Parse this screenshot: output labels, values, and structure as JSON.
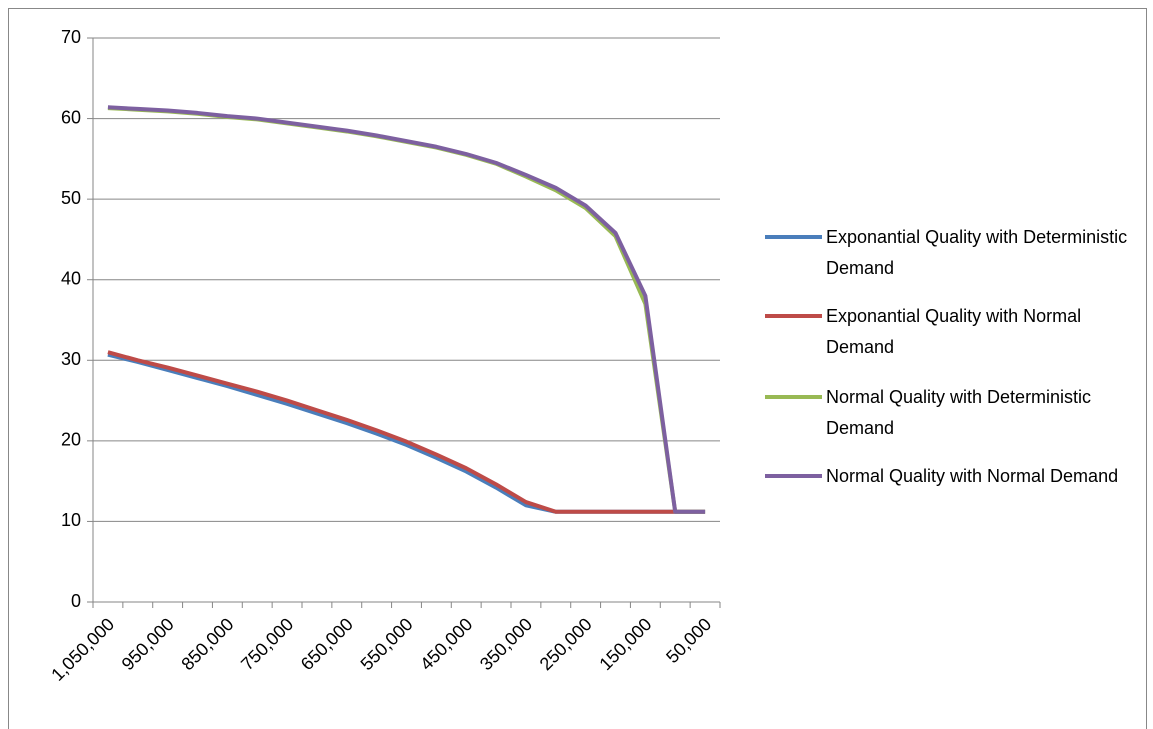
{
  "chart_data": {
    "type": "line",
    "categories": [
      "1,050,000",
      null,
      "950,000",
      null,
      "850,000",
      null,
      "750,000",
      null,
      "650,000",
      null,
      "550,000",
      null,
      "450,000",
      null,
      "350,000",
      null,
      "250,000",
      null,
      "150,000",
      null,
      "50,000"
    ],
    "series": [
      {
        "name": "Exponantial Quality with Deterministic Demand",
        "color": "#4a7ebb",
        "values": [
          30.7,
          29.8,
          28.8,
          27.8,
          26.8,
          25.7,
          24.6,
          23.4,
          22.2,
          20.9,
          19.5,
          17.9,
          16.2,
          14.2,
          12.0,
          11.2,
          11.2,
          11.2,
          11.2,
          11.2,
          11.2
        ]
      },
      {
        "name": "Exponantial Quality with Normal Demand",
        "color": "#be4b48",
        "values": [
          31.0,
          30.0,
          29.1,
          28.1,
          27.1,
          26.1,
          25.0,
          23.8,
          22.6,
          21.3,
          19.9,
          18.3,
          16.6,
          14.6,
          12.4,
          11.2,
          11.2,
          11.2,
          11.2,
          11.2,
          11.2
        ]
      },
      {
        "name": "Normal Quality with Deterministic Demand",
        "color": "#98b954",
        "values": [
          61.3,
          61.1,
          60.9,
          60.6,
          60.2,
          59.9,
          59.4,
          58.9,
          58.4,
          57.8,
          57.1,
          56.4,
          55.5,
          54.4,
          52.8,
          51.1,
          48.9,
          45.4,
          37.0,
          11.2,
          11.2
        ]
      },
      {
        "name": "Normal Quality with Normal Demand",
        "color": "#7d60a0",
        "values": [
          61.4,
          61.2,
          61.0,
          60.7,
          60.3,
          60.0,
          59.5,
          59.0,
          58.5,
          57.9,
          57.2,
          56.5,
          55.6,
          54.5,
          53.0,
          51.4,
          49.2,
          45.8,
          38.0,
          11.2,
          11.2
        ]
      }
    ],
    "ylim": [
      0,
      70
    ],
    "yticks": [
      0,
      10,
      20,
      30,
      40,
      50,
      60,
      70
    ],
    "grid": true
  }
}
